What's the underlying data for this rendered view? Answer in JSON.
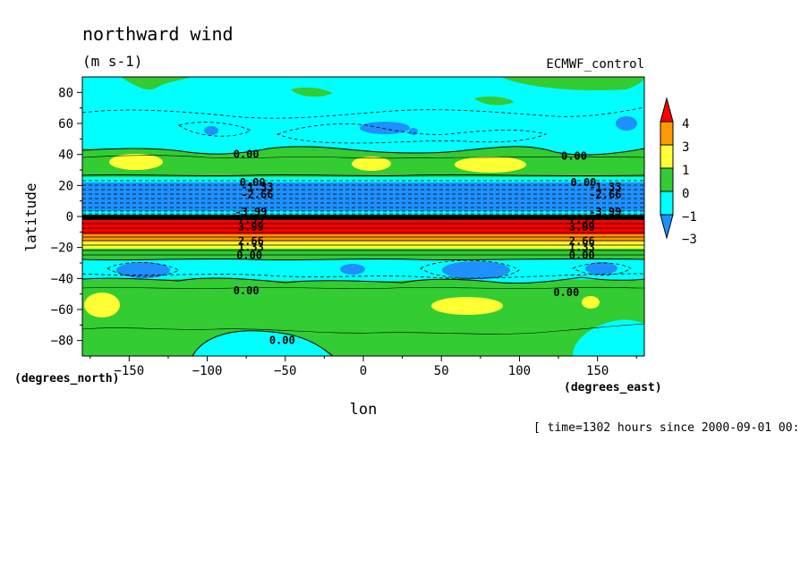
{
  "chart_data": {
    "type": "heatmap",
    "title": "northward wind",
    "units": "(m s-1)",
    "dataset": "ECMWF_control",
    "xlabel": "lon",
    "ylabel": "latitude",
    "x_unit_label": "(degrees_east)",
    "y_unit_label": "(degrees_north)",
    "xlim": [
      -180,
      180
    ],
    "ylim": [
      -90,
      90
    ],
    "x_ticks": [
      -150,
      -100,
      -50,
      0,
      50,
      100,
      150
    ],
    "x_tick_labels": [
      "−150",
      "−100",
      "−50",
      "0",
      "50",
      "100",
      "150"
    ],
    "y_ticks": [
      80,
      60,
      40,
      20,
      0,
      -20,
      -40,
      -60,
      -80
    ],
    "y_tick_labels": [
      "80",
      "60",
      "40",
      "20",
      "0",
      "−20",
      "−40",
      "−60",
      "−80"
    ],
    "time_label": "[ time=1302 hours since 2000-09-01 00:",
    "colorbar": {
      "labels": [
        "4",
        "3",
        "1",
        "0",
        "−1",
        "−3"
      ],
      "colors": [
        "#ff0000",
        "#ff9900",
        "#ffff33",
        "#33cc33",
        "#00ffff",
        "#1e90ff"
      ]
    },
    "contour_labels": [
      {
        "text": "0.00",
        "lon": -75,
        "lat": 40
      },
      {
        "text": "0.00",
        "lon": 135,
        "lat": 39
      },
      {
        "text": "0.00",
        "lon": -71,
        "lat": 22
      },
      {
        "text": "0.00",
        "lon": 141,
        "lat": 22
      },
      {
        "text": "-1.33",
        "lon": -68,
        "lat": 19
      },
      {
        "text": "-1.33",
        "lon": 155,
        "lat": 19
      },
      {
        "text": "-2.66",
        "lon": -68,
        "lat": 14
      },
      {
        "text": "-2.66",
        "lon": 155,
        "lat": 14
      },
      {
        "text": "-3.99",
        "lon": -72,
        "lat": 3
      },
      {
        "text": "-3.99",
        "lon": 155,
        "lat": 3
      },
      {
        "text": "7.99",
        "lon": -72,
        "lat": -2
      },
      {
        "text": "7.99",
        "lon": 140,
        "lat": -2
      },
      {
        "text": "3.99",
        "lon": -72,
        "lat": -7
      },
      {
        "text": "3.99",
        "lon": 140,
        "lat": -7
      },
      {
        "text": "2.66",
        "lon": -72,
        "lat": -16
      },
      {
        "text": "2.66",
        "lon": 140,
        "lat": -16
      },
      {
        "text": "1.33",
        "lon": -72,
        "lat": -20
      },
      {
        "text": "1.33",
        "lon": 140,
        "lat": -20
      },
      {
        "text": "0.00",
        "lon": -73,
        "lat": -25
      },
      {
        "text": "0.00",
        "lon": 140,
        "lat": -25
      },
      {
        "text": "0.00",
        "lon": -75,
        "lat": -48
      },
      {
        "text": "0.00",
        "lon": 130,
        "lat": -49
      },
      {
        "text": "0.00",
        "lon": -52,
        "lat": -80
      }
    ]
  }
}
